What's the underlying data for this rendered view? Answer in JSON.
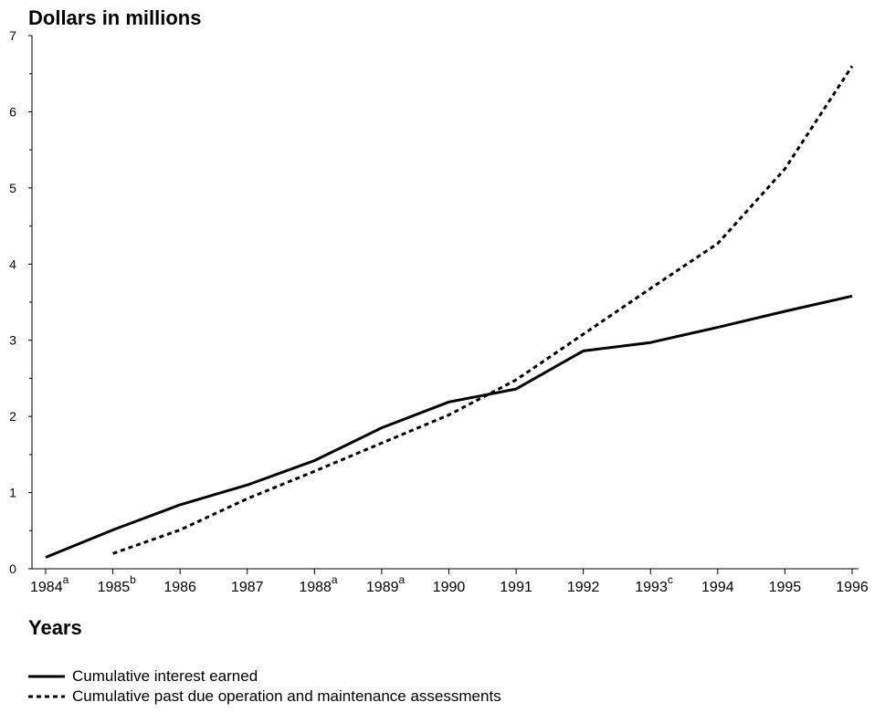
{
  "chart_data": {
    "type": "line",
    "ylabel": "Dollars in millions",
    "xlabel": "Years",
    "ylim": [
      0,
      7
    ],
    "y_ticks": [
      "0",
      "1",
      "2",
      "3",
      "4",
      "5",
      "6",
      "7"
    ],
    "categories": [
      {
        "year": "1984",
        "note": "a"
      },
      {
        "year": "1985",
        "note": "b"
      },
      {
        "year": "1986",
        "note": ""
      },
      {
        "year": "1987",
        "note": ""
      },
      {
        "year": "1988",
        "note": "a"
      },
      {
        "year": "1989",
        "note": "a"
      },
      {
        "year": "1990",
        "note": ""
      },
      {
        "year": "1991",
        "note": ""
      },
      {
        "year": "1992",
        "note": ""
      },
      {
        "year": "1993",
        "note": "c"
      },
      {
        "year": "1994",
        "note": ""
      },
      {
        "year": "1995",
        "note": ""
      },
      {
        "year": "1996",
        "note": ""
      }
    ],
    "series": [
      {
        "name": "Cumulative interest earned",
        "style": "solid",
        "color": "#000000",
        "values": [
          0.15,
          0.51,
          0.84,
          1.1,
          1.42,
          1.85,
          2.19,
          2.36,
          2.86,
          2.97,
          3.17,
          3.38,
          3.58
        ]
      },
      {
        "name": "Cumulative past due operation and maintenance assessments",
        "style": "dotted",
        "color": "#000000",
        "values": [
          null,
          0.2,
          0.51,
          0.92,
          1.28,
          1.65,
          2.02,
          2.48,
          3.08,
          3.68,
          4.27,
          5.25,
          6.6
        ]
      }
    ],
    "grid": false,
    "legend_position": "bottom-left"
  }
}
